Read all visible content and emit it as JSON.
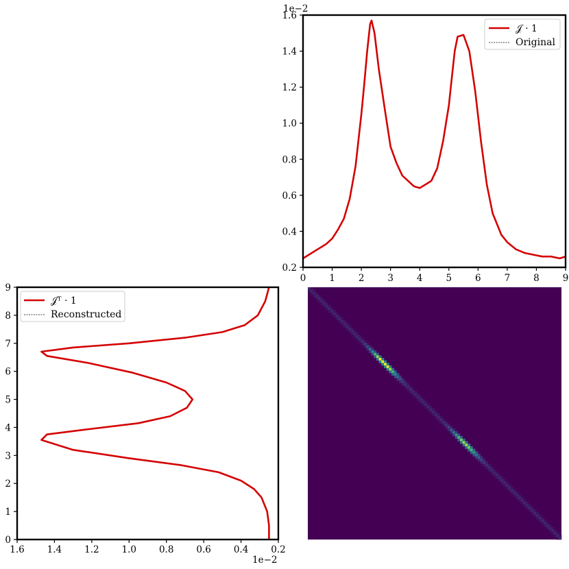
{
  "figure": {
    "top_plot": {
      "type": "line",
      "offset_label": "1e−2",
      "xlim": [
        0,
        9
      ],
      "ylim": [
        0.2,
        1.6
      ],
      "x_ticks": [
        "0",
        "1",
        "2",
        "3",
        "4",
        "5",
        "6",
        "7",
        "8",
        "9"
      ],
      "y_ticks": [
        "0.2",
        "0.4",
        "0.6",
        "0.8",
        "1.0",
        "1.2",
        "1.4",
        "1.6"
      ],
      "legend": {
        "placement": "top-right",
        "entries": [
          {
            "label": "𝒥 · 1",
            "style": "solid",
            "color": "#d40000"
          },
          {
            "label": "Original",
            "style": "dashed",
            "color": "#000000"
          }
        ]
      }
    },
    "left_plot": {
      "type": "line",
      "offset_label": "1e−2",
      "xlim": [
        1.6,
        0.2
      ],
      "ylim": [
        0,
        9
      ],
      "x_ticks": [
        "1.6",
        "1.4",
        "1.2",
        "1.0",
        "0.8",
        "0.6",
        "0.4",
        "0.2"
      ],
      "y_ticks": [
        "0",
        "1",
        "2",
        "3",
        "4",
        "5",
        "6",
        "7",
        "8",
        "9"
      ],
      "legend": {
        "placement": "top-left",
        "entries": [
          {
            "label": "𝒥ᵀ · 1",
            "style": "solid",
            "color": "#d40000"
          },
          {
            "label": "Reconstructed",
            "style": "dashed",
            "color": "#000000"
          }
        ]
      }
    },
    "matrix_plot": {
      "type": "heatmap",
      "background": "#440154",
      "diagonal": "top-left to bottom-right"
    }
  },
  "chart_data": [
    {
      "type": "line",
      "series": [
        {
          "name": "𝒥 · 1",
          "color": "#d40000",
          "x": [
            0,
            0.2,
            0.4,
            0.6,
            0.8,
            1.0,
            1.2,
            1.4,
            1.6,
            1.8,
            2.0,
            2.1,
            2.2,
            2.3,
            2.35,
            2.45,
            2.6,
            2.8,
            3.0,
            3.2,
            3.4,
            3.6,
            3.8,
            4.0,
            4.2,
            4.4,
            4.6,
            4.8,
            5.0,
            5.1,
            5.2,
            5.3,
            5.5,
            5.7,
            5.9,
            6.1,
            6.3,
            6.5,
            6.8,
            7.0,
            7.3,
            7.6,
            7.9,
            8.2,
            8.5,
            8.8,
            9.0
          ],
          "y": [
            0.25,
            0.27,
            0.29,
            0.31,
            0.33,
            0.36,
            0.41,
            0.47,
            0.58,
            0.76,
            1.05,
            1.22,
            1.4,
            1.55,
            1.57,
            1.5,
            1.3,
            1.08,
            0.87,
            0.78,
            0.71,
            0.68,
            0.65,
            0.64,
            0.66,
            0.68,
            0.75,
            0.9,
            1.1,
            1.25,
            1.4,
            1.48,
            1.49,
            1.4,
            1.18,
            0.9,
            0.66,
            0.5,
            0.38,
            0.34,
            0.3,
            0.28,
            0.27,
            0.26,
            0.26,
            0.25,
            0.26
          ]
        },
        {
          "name": "Original",
          "color": "#000000",
          "x": [],
          "y": []
        }
      ]
    },
    {
      "type": "line",
      "series": [
        {
          "name": "𝒥ᵀ · 1",
          "color": "#d40000",
          "x": [
            0.25,
            0.25,
            0.26,
            0.29,
            0.33,
            0.4,
            0.52,
            0.72,
            1.0,
            1.3,
            1.47,
            1.44,
            1.2,
            0.95,
            0.78,
            0.69,
            0.66,
            0.7,
            0.8,
            0.98,
            1.22,
            1.44,
            1.47,
            1.3,
            1.0,
            0.7,
            0.5,
            0.38,
            0.31,
            0.27,
            0.25
          ],
          "y": [
            0.0,
            0.5,
            1.0,
            1.5,
            1.8,
            2.1,
            2.4,
            2.65,
            2.9,
            3.2,
            3.55,
            3.75,
            3.95,
            4.15,
            4.4,
            4.7,
            5.0,
            5.3,
            5.6,
            5.95,
            6.3,
            6.55,
            6.7,
            6.85,
            7.0,
            7.2,
            7.4,
            7.65,
            8.0,
            8.5,
            9.0
          ]
        },
        {
          "name": "Reconstructed",
          "color": "#000000",
          "x": [],
          "y": []
        }
      ]
    },
    {
      "type": "heatmap",
      "n": 100,
      "diagonal_intensity_peaks": [
        {
          "position": 0.3,
          "value": 1.0
        },
        {
          "position": 0.62,
          "value": 0.75
        }
      ]
    }
  ]
}
